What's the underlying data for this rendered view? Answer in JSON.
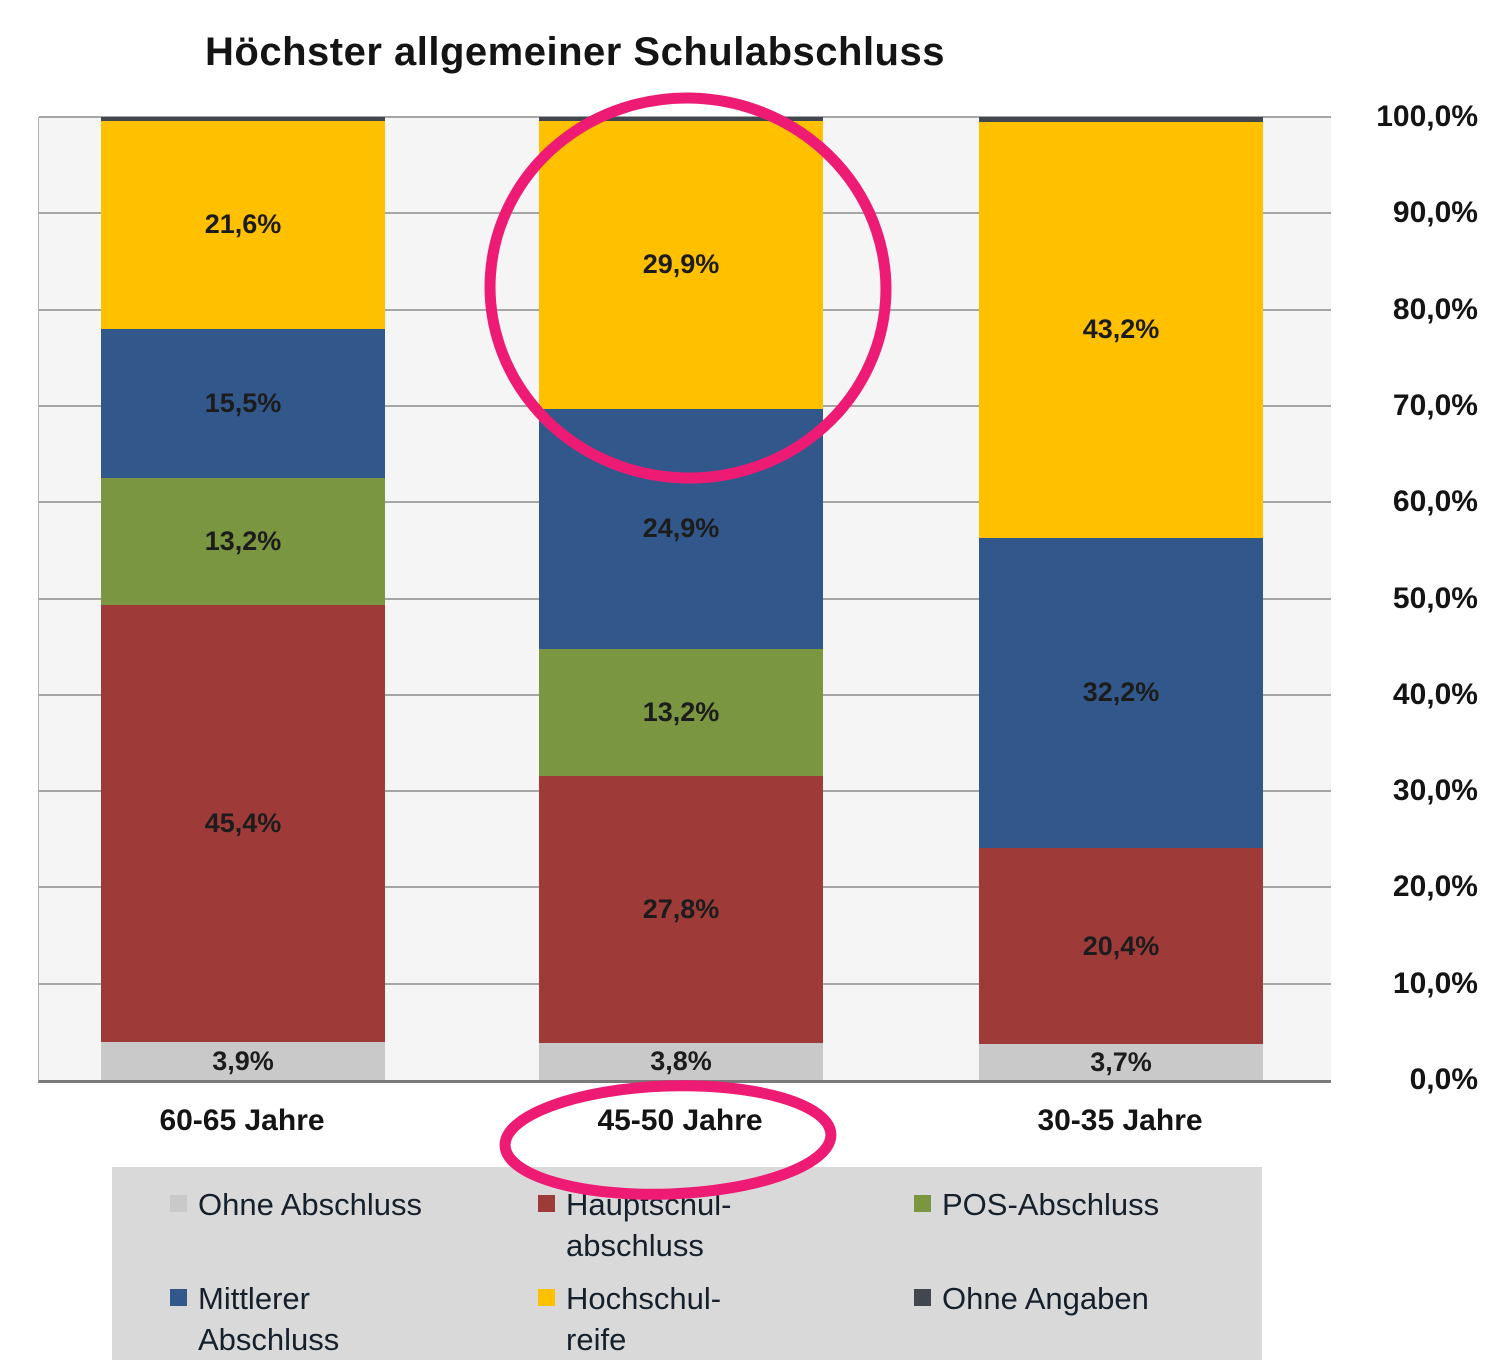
{
  "title": "Höchster allgemeiner Schulabschluss",
  "chart_data": {
    "type": "bar",
    "stacked": true,
    "title": "Höchster allgemeiner Schulabschluss",
    "categories": [
      "60-65 Jahre",
      "45-50 Jahre",
      "30-35 Jahre"
    ],
    "series": [
      {
        "name": "Ohne Abschluss",
        "color": "#c9c9c9",
        "values": [
          3.9,
          3.8,
          3.7
        ],
        "labels": [
          "3,9%",
          "3,8%",
          "3,7%"
        ]
      },
      {
        "name": "Hauptschulabschluss",
        "color": "#9e3b39",
        "values": [
          45.4,
          27.8,
          20.4
        ],
        "labels": [
          "45,4%",
          "27,8%",
          "20,4%"
        ]
      },
      {
        "name": "POS-Abschluss",
        "color": "#7a9640",
        "values": [
          13.2,
          13.2,
          0
        ],
        "labels": [
          "13,2%",
          "13,2%",
          ""
        ]
      },
      {
        "name": "Mittlerer Abschluss",
        "color": "#32588b",
        "values": [
          15.5,
          24.9,
          32.2
        ],
        "labels": [
          "15,5%",
          "24,9%",
          "32,2%"
        ]
      },
      {
        "name": "Hochschulreife",
        "color": "#ffc000",
        "values": [
          21.6,
          29.9,
          43.2
        ],
        "labels": [
          "21,6%",
          "29,9%",
          "43,2%"
        ]
      },
      {
        "name": "Ohne Angaben",
        "color": "#42474d",
        "values": [
          0.4,
          0.4,
          0.5
        ],
        "labels": [
          "",
          "",
          ""
        ]
      }
    ],
    "y_ticks": [
      "100,0%",
      "90,0%",
      "80,0%",
      "70,0%",
      "60,0%",
      "50,0%",
      "40,0%",
      "30,0%",
      "20,0%",
      "10,0%",
      "0,0%"
    ],
    "ylim": [
      0,
      100
    ],
    "grid": true,
    "legend_position": "bottom"
  },
  "legend": {
    "items": [
      {
        "label": "Ohne Abschluss",
        "color": "#c9c9c9"
      },
      {
        "label": "Hauptschul-\nabschluss",
        "color": "#9e3b39"
      },
      {
        "label": "POS-Abschluss",
        "color": "#7a9640"
      },
      {
        "label": "Mittlerer\nAbschluss",
        "color": "#32588b"
      },
      {
        "label": "Hochschul-\nreife",
        "color": "#ffc000"
      },
      {
        "label": "Ohne Angaben",
        "color": "#42474d"
      }
    ]
  },
  "annotations": {
    "color": "#ee1b74",
    "items": [
      "hand-drawn circle around 29,9% Hochschulreife segment of 45-50 Jahre bar",
      "hand-drawn circle around 45-50 Jahre category label"
    ]
  }
}
